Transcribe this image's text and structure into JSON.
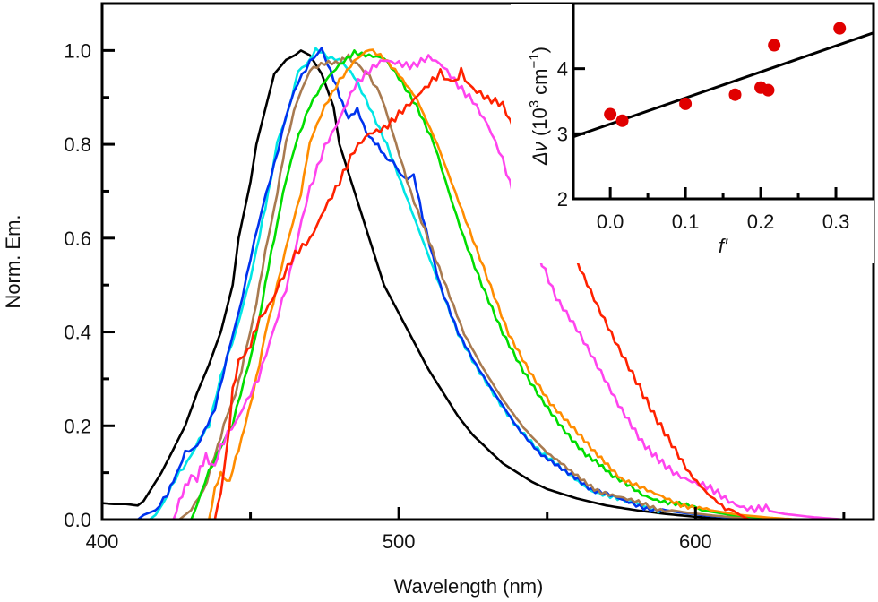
{
  "chart_data": [
    {
      "type": "line",
      "name": "main",
      "title": "",
      "xlabel": "Wavelength (nm)",
      "ylabel": "Norm. Em.",
      "xlim": [
        400,
        660
      ],
      "ylim": [
        0.0,
        1.1
      ],
      "xticks": [
        400,
        500,
        600
      ],
      "xticks_minor": [
        450,
        550,
        650
      ],
      "yticks": [
        0.0,
        0.2,
        0.4,
        0.6,
        0.8,
        1.0
      ],
      "yticks_minor": [
        0.1,
        0.3,
        0.5,
        0.7,
        0.9
      ],
      "ytick_labels": [
        "0.0",
        "0.2",
        "0.4",
        "0.6",
        "0.8",
        "1.0"
      ],
      "xtick_labels": [
        "400",
        "500",
        "600"
      ],
      "grid": false,
      "legend": "none",
      "series": [
        {
          "name": "black",
          "color": "#000000",
          "x": [
            400,
            404,
            408,
            412,
            414,
            416,
            418,
            420,
            424,
            428,
            432,
            436,
            440,
            444,
            446,
            450,
            452,
            456,
            458,
            462,
            465,
            467,
            470,
            474,
            478,
            480,
            485,
            490,
            495,
            500,
            505,
            510,
            515,
            520,
            525,
            530,
            535,
            540,
            545,
            550,
            560,
            570,
            580,
            590,
            600,
            610,
            620
          ],
          "y": [
            0.035,
            0.033,
            0.033,
            0.03,
            0.04,
            0.06,
            0.08,
            0.1,
            0.15,
            0.2,
            0.27,
            0.33,
            0.4,
            0.5,
            0.6,
            0.72,
            0.8,
            0.9,
            0.95,
            0.98,
            0.99,
            1.0,
            0.99,
            0.95,
            0.88,
            0.8,
            0.7,
            0.6,
            0.5,
            0.44,
            0.38,
            0.32,
            0.27,
            0.22,
            0.18,
            0.15,
            0.12,
            0.1,
            0.08,
            0.065,
            0.045,
            0.03,
            0.02,
            0.012,
            0.006,
            0.003,
            0.0
          ]
        },
        {
          "name": "cyan",
          "color": "#00e5e5",
          "x": [
            400,
            416,
            418,
            422,
            426,
            430,
            434,
            436,
            440,
            445,
            450,
            453,
            456,
            459,
            463,
            466,
            470,
            472,
            476,
            480,
            485,
            490,
            496,
            502,
            508,
            514,
            520,
            526,
            532,
            540,
            548,
            556,
            565,
            575,
            585,
            595,
            605,
            615,
            625
          ],
          "y": [
            0.0,
            0.0,
            0.01,
            0.05,
            0.1,
            0.14,
            0.18,
            0.2,
            0.3,
            0.4,
            0.52,
            0.6,
            0.7,
            0.8,
            0.88,
            0.95,
            0.98,
            1.0,
            0.99,
            0.98,
            0.94,
            0.88,
            0.8,
            0.7,
            0.6,
            0.5,
            0.4,
            0.33,
            0.27,
            0.2,
            0.14,
            0.1,
            0.065,
            0.04,
            0.025,
            0.015,
            0.008,
            0.003,
            0.0
          ]
        },
        {
          "name": "blue",
          "color": "#0033ee",
          "x": [
            400,
            412,
            414,
            418,
            422,
            425,
            428,
            432,
            438,
            442,
            446,
            450,
            454,
            458,
            462,
            466,
            470,
            474,
            477,
            480,
            483,
            486,
            489,
            492,
            495,
            498,
            502,
            505,
            508,
            514,
            520,
            526,
            532,
            540,
            548,
            556,
            565,
            575,
            585,
            595,
            605,
            615,
            625
          ],
          "y": [
            0.0,
            0.0,
            0.01,
            0.02,
            0.05,
            0.1,
            0.14,
            0.16,
            0.24,
            0.34,
            0.44,
            0.56,
            0.66,
            0.76,
            0.86,
            0.93,
            0.98,
            1.0,
            0.96,
            0.9,
            0.86,
            0.87,
            0.83,
            0.8,
            0.78,
            0.76,
            0.73,
            0.73,
            0.65,
            0.5,
            0.4,
            0.33,
            0.27,
            0.2,
            0.14,
            0.1,
            0.065,
            0.04,
            0.025,
            0.015,
            0.008,
            0.003,
            0.0
          ]
        },
        {
          "name": "brown",
          "color": "#a87a50",
          "x": [
            400,
            426,
            430,
            434,
            438,
            441,
            444,
            447,
            450,
            453,
            456,
            459,
            462,
            466,
            470,
            475,
            480,
            483,
            486,
            490,
            494,
            499,
            504,
            510,
            516,
            522,
            528,
            535,
            542,
            550,
            558,
            567,
            577,
            587,
            597,
            607,
            617,
            627
          ],
          "y": [
            0.0,
            0.0,
            0.02,
            0.06,
            0.14,
            0.2,
            0.25,
            0.32,
            0.4,
            0.5,
            0.6,
            0.7,
            0.8,
            0.9,
            0.96,
            0.97,
            0.97,
            0.99,
            0.97,
            0.95,
            0.9,
            0.8,
            0.7,
            0.6,
            0.5,
            0.4,
            0.33,
            0.26,
            0.2,
            0.14,
            0.1,
            0.065,
            0.04,
            0.025,
            0.015,
            0.008,
            0.003,
            0.0
          ]
        },
        {
          "name": "green",
          "color": "#00dd00",
          "x": [
            400,
            430,
            432,
            436,
            440,
            444,
            448,
            452,
            455,
            458,
            461,
            465,
            470,
            475,
            480,
            485,
            490,
            495,
            500,
            506,
            512,
            517,
            522,
            528,
            535,
            542,
            548,
            555,
            563,
            572,
            582,
            592,
            602,
            612,
            622,
            632
          ],
          "y": [
            0.0,
            0.0,
            0.03,
            0.1,
            0.16,
            0.2,
            0.3,
            0.4,
            0.5,
            0.6,
            0.7,
            0.8,
            0.88,
            0.93,
            0.97,
            1.0,
            0.99,
            0.98,
            0.94,
            0.88,
            0.8,
            0.7,
            0.6,
            0.5,
            0.4,
            0.32,
            0.26,
            0.2,
            0.14,
            0.09,
            0.055,
            0.035,
            0.02,
            0.01,
            0.004,
            0.0
          ]
        },
        {
          "name": "orange",
          "color": "#ff8c00",
          "x": [
            400,
            436,
            438,
            440,
            443,
            446,
            448,
            452,
            455,
            459,
            463,
            467,
            470,
            475,
            480,
            485,
            490,
            495,
            500,
            506,
            513,
            519,
            525,
            531,
            537,
            544,
            551,
            558,
            566,
            575,
            585,
            595,
            605,
            615,
            625,
            635
          ],
          "y": [
            0.0,
            0.0,
            0.06,
            0.1,
            0.08,
            0.15,
            0.2,
            0.3,
            0.4,
            0.5,
            0.6,
            0.7,
            0.8,
            0.88,
            0.94,
            0.98,
            1.0,
            0.98,
            0.95,
            0.9,
            0.8,
            0.7,
            0.6,
            0.5,
            0.4,
            0.32,
            0.25,
            0.2,
            0.14,
            0.09,
            0.055,
            0.035,
            0.02,
            0.01,
            0.004,
            0.0
          ]
        },
        {
          "name": "magenta",
          "color": "#ff44ee",
          "x": [
            400,
            424,
            426,
            428,
            430,
            432,
            435,
            438,
            441,
            445,
            450,
            454,
            458,
            462,
            466,
            470,
            475,
            480,
            485,
            490,
            495,
            500,
            505,
            510,
            515,
            520,
            525,
            530,
            535,
            540,
            547,
            553,
            560,
            567,
            574,
            582,
            590,
            600,
            610,
            620,
            630,
            640,
            650
          ],
          "y": [
            0.0,
            0.0,
            0.03,
            0.07,
            0.1,
            0.08,
            0.14,
            0.11,
            0.17,
            0.2,
            0.27,
            0.33,
            0.4,
            0.5,
            0.6,
            0.7,
            0.8,
            0.86,
            0.92,
            0.95,
            0.98,
            0.98,
            0.97,
            0.98,
            0.96,
            0.93,
            0.9,
            0.84,
            0.76,
            0.66,
            0.56,
            0.47,
            0.4,
            0.32,
            0.24,
            0.17,
            0.12,
            0.075,
            0.045,
            0.025,
            0.012,
            0.005,
            0.0
          ]
        },
        {
          "name": "red",
          "color": "#ff2200",
          "x": [
            400,
            438,
            440,
            442,
            444,
            446,
            448,
            450,
            453,
            456,
            460,
            465,
            470,
            475,
            480,
            485,
            490,
            495,
            500,
            505,
            510,
            514,
            518,
            521,
            525,
            530,
            535,
            540,
            545,
            550,
            555,
            560,
            567,
            574,
            580,
            586,
            592,
            598,
            604,
            610,
            615,
            618
          ],
          "y": [
            0.0,
            0.0,
            0.05,
            0.15,
            0.28,
            0.33,
            0.35,
            0.38,
            0.42,
            0.46,
            0.5,
            0.56,
            0.6,
            0.67,
            0.72,
            0.78,
            0.82,
            0.84,
            0.87,
            0.89,
            0.92,
            0.96,
            0.93,
            0.96,
            0.92,
            0.89,
            0.88,
            0.82,
            0.76,
            0.7,
            0.63,
            0.55,
            0.45,
            0.36,
            0.29,
            0.22,
            0.16,
            0.1,
            0.06,
            0.03,
            0.01,
            0.0
          ]
        }
      ]
    },
    {
      "type": "scatter",
      "name": "inset",
      "title": "",
      "xlabel": "f′",
      "ylabel_parts": {
        "delta": "Δν",
        "open": " (10",
        "sup1": "3",
        "mid": " cm",
        "sup2": "−1",
        "close": ")"
      },
      "xlim": [
        -0.049,
        0.35
      ],
      "ylim": [
        2.0,
        5.0
      ],
      "xticks": [
        0.0,
        0.1,
        0.2,
        0.3
      ],
      "xtick_labels": [
        "0.0",
        "0.1",
        "0.2",
        "0.3"
      ],
      "xticks_minor": [
        0.05,
        0.15,
        0.25
      ],
      "yticks": [
        2,
        3,
        4
      ],
      "ytick_labels": [
        "2",
        "3",
        "4"
      ],
      "grid": false,
      "legend": "none",
      "points": {
        "color": "#e00000",
        "x": [
          0.0,
          0.016,
          0.1,
          0.166,
          0.2,
          0.21,
          0.218,
          0.305
        ],
        "y": [
          3.3,
          3.2,
          3.46,
          3.6,
          3.71,
          3.67,
          4.36,
          4.62
        ]
      },
      "fit_line": {
        "color": "#000000",
        "slope": 4.0,
        "intercept": 3.15
      }
    }
  ]
}
